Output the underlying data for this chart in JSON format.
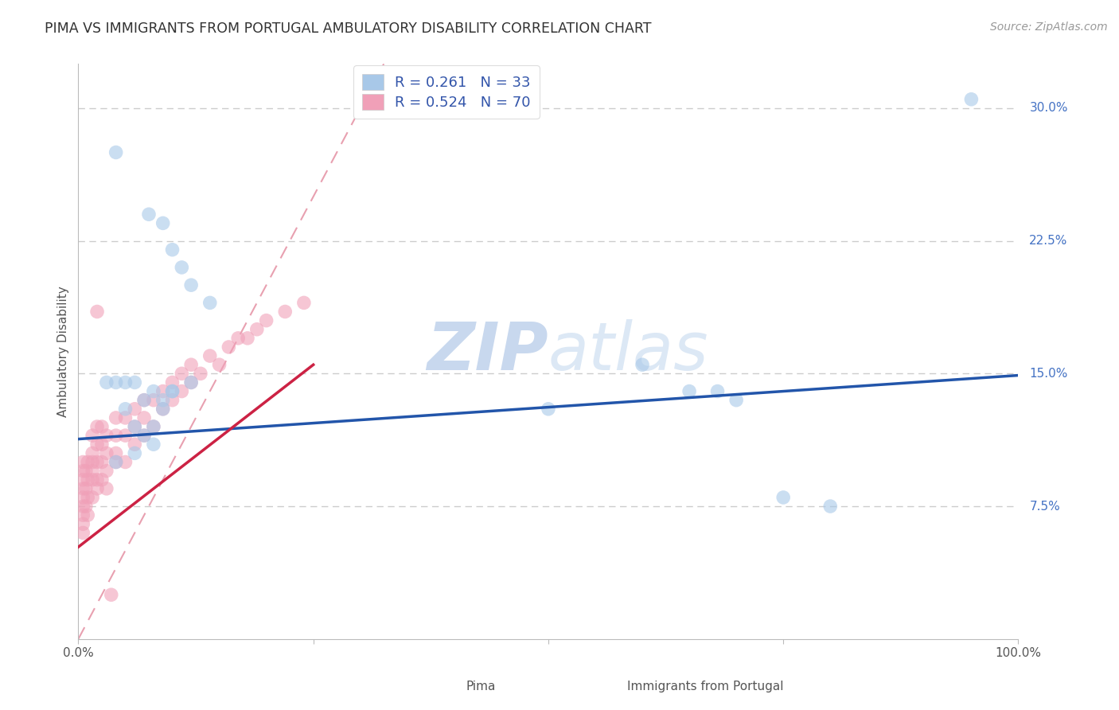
{
  "title": "PIMA VS IMMIGRANTS FROM PORTUGAL AMBULATORY DISABILITY CORRELATION CHART",
  "source_text": "Source: ZipAtlas.com",
  "ylabel": "Ambulatory Disability",
  "ytick_labels": [
    "7.5%",
    "15.0%",
    "22.5%",
    "30.0%"
  ],
  "ytick_values": [
    0.075,
    0.15,
    0.225,
    0.3
  ],
  "xlim": [
    0.0,
    1.0
  ],
  "ylim": [
    0.0,
    0.325
  ],
  "legend_r1": "R = 0.261",
  "legend_n1": "N = 33",
  "legend_r2": "R = 0.524",
  "legend_n2": "N = 70",
  "blue_color": "#a8c8e8",
  "pink_color": "#f0a0b8",
  "blue_line_color": "#2255aa",
  "pink_line_color": "#cc2244",
  "diag_line_color": "#e8a0b0",
  "background_color": "#ffffff",
  "grid_color": "#cccccc",
  "right_label_color": "#4472C4",
  "title_color": "#333333",
  "legend_text_color": "#3355aa",
  "watermark_color": "#dce8f5",
  "title_fontsize": 12.5,
  "axis_label_fontsize": 11,
  "tick_fontsize": 11,
  "legend_fontsize": 13,
  "source_fontsize": 10,
  "watermark_fontsize": 60,
  "scatter_size": 160,
  "scatter_alpha": 0.6,
  "pima_x": [
    0.04,
    0.075,
    0.09,
    0.1,
    0.11,
    0.12,
    0.14,
    0.03,
    0.04,
    0.05,
    0.06,
    0.07,
    0.08,
    0.09,
    0.1,
    0.05,
    0.06,
    0.07,
    0.08,
    0.09,
    0.1,
    0.12,
    0.04,
    0.06,
    0.08,
    0.5,
    0.6,
    0.65,
    0.68,
    0.7,
    0.75,
    0.8,
    0.95
  ],
  "pima_y": [
    0.275,
    0.24,
    0.235,
    0.22,
    0.21,
    0.2,
    0.19,
    0.145,
    0.145,
    0.13,
    0.12,
    0.115,
    0.12,
    0.13,
    0.14,
    0.145,
    0.145,
    0.135,
    0.14,
    0.135,
    0.14,
    0.145,
    0.1,
    0.105,
    0.11,
    0.13,
    0.155,
    0.14,
    0.14,
    0.135,
    0.08,
    0.075,
    0.305
  ],
  "portugal_x": [
    0.005,
    0.005,
    0.005,
    0.005,
    0.005,
    0.005,
    0.005,
    0.005,
    0.005,
    0.008,
    0.008,
    0.008,
    0.01,
    0.01,
    0.01,
    0.01,
    0.015,
    0.015,
    0.015,
    0.015,
    0.015,
    0.015,
    0.02,
    0.02,
    0.02,
    0.02,
    0.02,
    0.025,
    0.025,
    0.025,
    0.025,
    0.03,
    0.03,
    0.03,
    0.03,
    0.04,
    0.04,
    0.04,
    0.04,
    0.05,
    0.05,
    0.05,
    0.06,
    0.06,
    0.06,
    0.07,
    0.07,
    0.07,
    0.08,
    0.08,
    0.09,
    0.09,
    0.1,
    0.1,
    0.11,
    0.11,
    0.12,
    0.12,
    0.13,
    0.14,
    0.15,
    0.16,
    0.17,
    0.18,
    0.19,
    0.2,
    0.22,
    0.24,
    0.02,
    0.035
  ],
  "portugal_y": [
    0.065,
    0.07,
    0.075,
    0.08,
    0.085,
    0.09,
    0.095,
    0.1,
    0.06,
    0.075,
    0.085,
    0.095,
    0.07,
    0.08,
    0.09,
    0.1,
    0.08,
    0.09,
    0.095,
    0.1,
    0.105,
    0.115,
    0.085,
    0.09,
    0.1,
    0.11,
    0.12,
    0.09,
    0.1,
    0.11,
    0.12,
    0.085,
    0.095,
    0.105,
    0.115,
    0.1,
    0.105,
    0.115,
    0.125,
    0.1,
    0.115,
    0.125,
    0.11,
    0.12,
    0.13,
    0.115,
    0.125,
    0.135,
    0.12,
    0.135,
    0.13,
    0.14,
    0.135,
    0.145,
    0.14,
    0.15,
    0.145,
    0.155,
    0.15,
    0.16,
    0.155,
    0.165,
    0.17,
    0.17,
    0.175,
    0.18,
    0.185,
    0.19,
    0.185,
    0.025
  ],
  "blue_line_x0": 0.0,
  "blue_line_y0": 0.113,
  "blue_line_x1": 1.0,
  "blue_line_y1": 0.149,
  "pink_line_x0": 0.0,
  "pink_line_y0": 0.052,
  "pink_line_x1": 0.25,
  "pink_line_y1": 0.155
}
